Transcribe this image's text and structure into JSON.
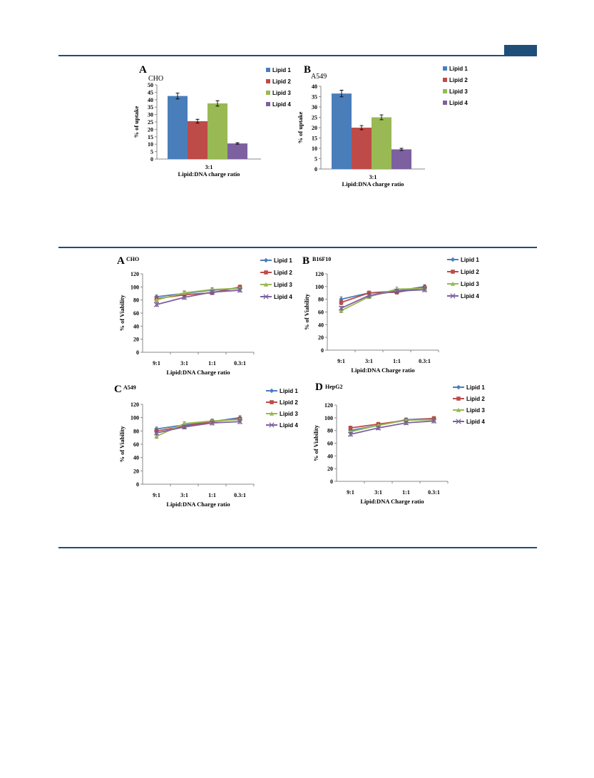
{
  "page": {
    "rule_color": "#1f4e79"
  },
  "figures": {
    "uptake": {
      "panels": [
        {
          "letter": "A",
          "cell": "CHO"
        },
        {
          "letter": "B",
          "cell": "A549"
        }
      ]
    },
    "viability": {
      "panels": [
        {
          "letter": "A",
          "cell": "CHO"
        },
        {
          "letter": "B",
          "cell": "B16F10"
        },
        {
          "letter": "C",
          "cell": "A549"
        },
        {
          "letter": "D",
          "cell": "HepG2"
        }
      ]
    }
  },
  "chart_data": [
    {
      "type": "bar",
      "panel": "A",
      "cell_line": "CHO",
      "categories": [
        "3:1"
      ],
      "xlabel": "Lipid:DNA charge ratio",
      "ylabel": "% of uptake",
      "ylim": [
        0,
        50
      ],
      "yticks": [
        0,
        5,
        10,
        15,
        20,
        25,
        30,
        35,
        40,
        45,
        50
      ],
      "legend_position": "top-right",
      "grid": false,
      "series": [
        {
          "name": "Lipid 1",
          "values": [
            42.5
          ],
          "error": [
            2.0
          ],
          "color": "#4a7ebb"
        },
        {
          "name": "Lipid 2",
          "values": [
            25.5
          ],
          "error": [
            1.3
          ],
          "color": "#be4b48"
        },
        {
          "name": "Lipid 3",
          "values": [
            37.5
          ],
          "error": [
            1.8
          ],
          "color": "#98b954"
        },
        {
          "name": "Lipid 4",
          "values": [
            10.5
          ],
          "error": [
            0.5
          ],
          "color": "#7d60a0"
        }
      ]
    },
    {
      "type": "bar",
      "panel": "B",
      "cell_line": "A549",
      "categories": [
        "3:1"
      ],
      "xlabel": "Lipid:DNA charge ratio",
      "ylabel": "% of uptake",
      "ylim": [
        0,
        40
      ],
      "yticks": [
        0,
        5,
        10,
        15,
        20,
        25,
        30,
        35,
        40
      ],
      "legend_position": "top-right",
      "grid": false,
      "series": [
        {
          "name": "Lipid 1",
          "values": [
            36.5
          ],
          "error": [
            1.6
          ],
          "color": "#4a7ebb"
        },
        {
          "name": "Lipid 2",
          "values": [
            20.0
          ],
          "error": [
            1.0
          ],
          "color": "#be4b48"
        },
        {
          "name": "Lipid 3",
          "values": [
            25.0
          ],
          "error": [
            1.2
          ],
          "color": "#98b954"
        },
        {
          "name": "Lipid 4",
          "values": [
            9.5
          ],
          "error": [
            0.5
          ],
          "color": "#7d60a0"
        }
      ]
    },
    {
      "type": "line",
      "panel": "A",
      "cell_line": "CHO",
      "x": [
        "9:1",
        "3:1",
        "1:1",
        "0.3:1"
      ],
      "xlabel": "Lipid:DNA Charge ratio",
      "ylabel": "% of Viability",
      "ylim": [
        0,
        120
      ],
      "yticks": [
        0,
        20,
        40,
        60,
        80,
        100,
        120
      ],
      "legend_position": "top-right",
      "grid": false,
      "series": [
        {
          "name": "Lipid 1",
          "values": [
            85,
            90,
            95,
            98
          ],
          "error": [
            3,
            3,
            3,
            3
          ],
          "color": "#4a7ebb",
          "marker": "diamond"
        },
        {
          "name": "Lipid 2",
          "values": [
            82,
            88,
            91,
            100
          ],
          "error": [
            3,
            3,
            3,
            3
          ],
          "color": "#be4b48",
          "marker": "square"
        },
        {
          "name": "Lipid 3",
          "values": [
            80,
            91,
            96,
            98
          ],
          "error": [
            3,
            3,
            3,
            3
          ],
          "color": "#98b954",
          "marker": "triangle"
        },
        {
          "name": "Lipid 4",
          "values": [
            73,
            84,
            92,
            95
          ],
          "error": [
            3,
            3,
            3,
            3
          ],
          "color": "#7d60a0",
          "marker": "x"
        }
      ]
    },
    {
      "type": "line",
      "panel": "B",
      "cell_line": "B16F10",
      "x": [
        "9:1",
        "3:1",
        "1:1",
        "0.3:1"
      ],
      "xlabel": "Lipid:DNA Charge ratio",
      "ylabel": "% of Viability",
      "ylim": [
        0,
        120
      ],
      "yticks": [
        0,
        20,
        40,
        60,
        80,
        100,
        120
      ],
      "legend_position": "top-right",
      "grid": false,
      "series": [
        {
          "name": "Lipid 1",
          "values": [
            80,
            90,
            93,
            100
          ],
          "error": [
            4,
            3,
            3,
            3
          ],
          "color": "#4a7ebb",
          "marker": "diamond"
        },
        {
          "name": "Lipid 2",
          "values": [
            75,
            90,
            91,
            98
          ],
          "error": [
            4,
            3,
            3,
            4
          ],
          "color": "#be4b48",
          "marker": "square"
        },
        {
          "name": "Lipid 3",
          "values": [
            62,
            84,
            96,
            97
          ],
          "error": [
            3,
            3,
            3,
            3
          ],
          "color": "#98b954",
          "marker": "triangle"
        },
        {
          "name": "Lipid 4",
          "values": [
            66,
            86,
            93,
            95
          ],
          "error": [
            3,
            3,
            3,
            3
          ],
          "color": "#7d60a0",
          "marker": "x"
        }
      ]
    },
    {
      "type": "line",
      "panel": "C",
      "cell_line": "A549",
      "x": [
        "9:1",
        "3:1",
        "1:1",
        "0.3:1"
      ],
      "xlabel": "Lipid:DNA Charge ratio",
      "ylabel": "% of Viability",
      "ylim": [
        0,
        120
      ],
      "yticks": [
        0,
        20,
        40,
        60,
        80,
        100,
        120
      ],
      "legend_position": "top-right",
      "grid": false,
      "series": [
        {
          "name": "Lipid 1",
          "values": [
            83,
            89,
            94,
            100
          ],
          "error": [
            3,
            3,
            3,
            3
          ],
          "color": "#4a7ebb",
          "marker": "diamond"
        },
        {
          "name": "Lipid 2",
          "values": [
            80,
            87,
            94,
            98
          ],
          "error": [
            3,
            3,
            3,
            3
          ],
          "color": "#be4b48",
          "marker": "square"
        },
        {
          "name": "Lipid 3",
          "values": [
            72,
            91,
            95,
            97
          ],
          "error": [
            3,
            3,
            3,
            3
          ],
          "color": "#98b954",
          "marker": "triangle"
        },
        {
          "name": "Lipid 4",
          "values": [
            77,
            86,
            92,
            94
          ],
          "error": [
            3,
            3,
            3,
            3
          ],
          "color": "#7d60a0",
          "marker": "x"
        }
      ]
    },
    {
      "type": "line",
      "panel": "D",
      "cell_line": "HepG2",
      "x": [
        "9:1",
        "3:1",
        "1:1",
        "0.3:1"
      ],
      "xlabel": "Lipid:DNA Charge ratio",
      "ylabel": "% of Viability",
      "ylim": [
        0,
        120
      ],
      "yticks": [
        0,
        20,
        40,
        60,
        80,
        100,
        120
      ],
      "legend_position": "top-right",
      "grid": false,
      "series": [
        {
          "name": "Lipid 1",
          "values": [
            80,
            88,
            97,
            99
          ],
          "error": [
            3,
            3,
            3,
            3
          ],
          "color": "#4a7ebb",
          "marker": "diamond"
        },
        {
          "name": "Lipid 2",
          "values": [
            84,
            90,
            96,
            99
          ],
          "error": [
            3,
            3,
            3,
            3
          ],
          "color": "#be4b48",
          "marker": "square"
        },
        {
          "name": "Lipid 3",
          "values": [
            78,
            88,
            96,
            97
          ],
          "error": [
            3,
            3,
            3,
            3
          ],
          "color": "#98b954",
          "marker": "triangle"
        },
        {
          "name": "Lipid 4",
          "values": [
            74,
            84,
            92,
            95
          ],
          "error": [
            3,
            3,
            3,
            3
          ],
          "color": "#7d60a0",
          "marker": "x"
        }
      ]
    }
  ]
}
